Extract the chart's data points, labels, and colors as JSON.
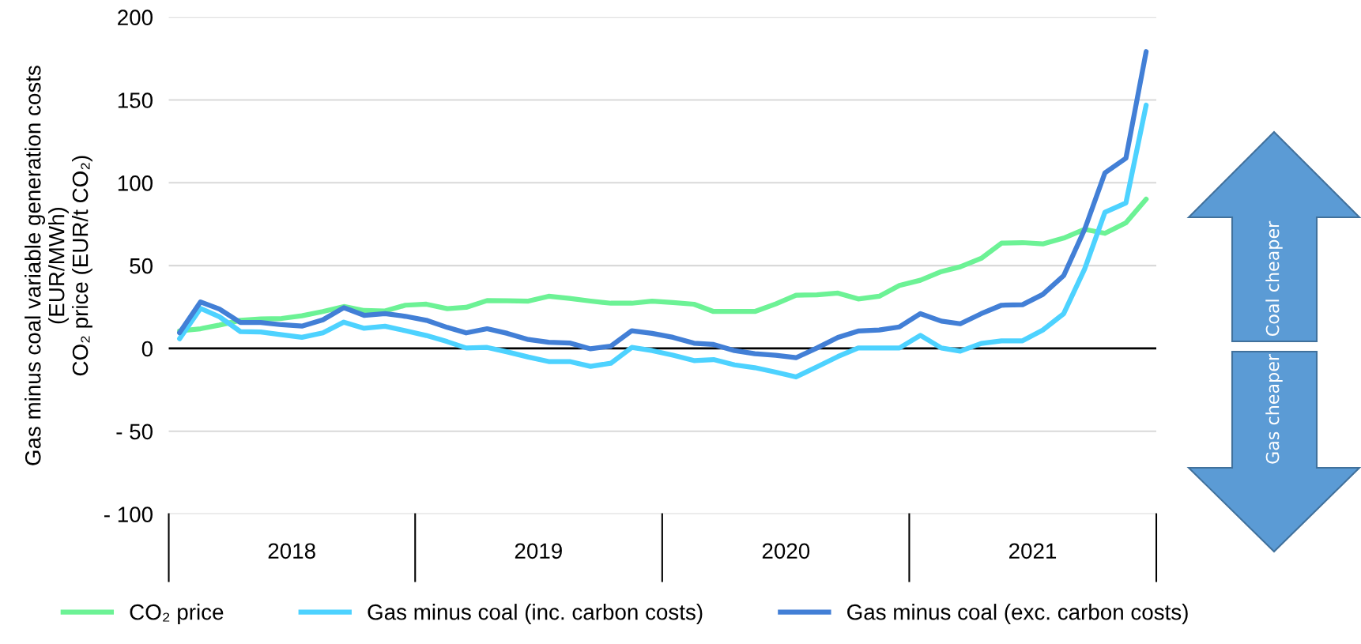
{
  "chart_data": {
    "type": "line",
    "ylabel": "Gas minus coal variable generation costs\n(EUR/MWh)\nCO₂ price (EUR/t CO₂)",
    "x": [
      "2018-01",
      "2018-02",
      "2018-03",
      "2018-04",
      "2018-05",
      "2018-06",
      "2018-07",
      "2018-08",
      "2018-09",
      "2018-10",
      "2018-11",
      "2018-12",
      "2019-01",
      "2019-02",
      "2019-03",
      "2019-04",
      "2019-05",
      "2019-06",
      "2019-07",
      "2019-08",
      "2019-09",
      "2019-10",
      "2019-11",
      "2019-12",
      "2020-01",
      "2020-02",
      "2020-03",
      "2020-04",
      "2020-05",
      "2020-06",
      "2020-07",
      "2020-08",
      "2020-09",
      "2020-10",
      "2020-11",
      "2020-12",
      "2021-01",
      "2021-02",
      "2021-03",
      "2021-04",
      "2021-05",
      "2021-06",
      "2021-07",
      "2021-08",
      "2021-09",
      "2021-10",
      "2021-11",
      "2021-12"
    ],
    "series": [
      {
        "name": "CO₂ price",
        "color": "#6cf295",
        "values": [
          10.6,
          11.9,
          14.1,
          17.0,
          17.8,
          18.1,
          19.7,
          22.3,
          25.3,
          22.9,
          22.6,
          26.1,
          26.7,
          24.0,
          24.8,
          28.9,
          28.8,
          28.6,
          31.5,
          30.2,
          28.6,
          27.3,
          27.3,
          28.5,
          27.7,
          26.7,
          22.3,
          22.3,
          22.3,
          26.9,
          32.1,
          32.4,
          33.4,
          29.9,
          31.5,
          38.0,
          41.2,
          46.4,
          49.3,
          54.4,
          63.6,
          63.9,
          63.1,
          66.6,
          71.9,
          69.5,
          75.8,
          90.1
        ]
      },
      {
        "name": "Gas minus coal (inc. carbon costs)",
        "color": "#4dd2ff",
        "values": [
          5.9,
          24.2,
          19.1,
          10.2,
          9.9,
          8.3,
          6.7,
          9.4,
          15.9,
          12.2,
          13.4,
          10.7,
          7.8,
          4.1,
          0.3,
          0.6,
          -2.1,
          -5.2,
          -7.9,
          -7.9,
          -10.8,
          -8.9,
          0.6,
          -1.3,
          -4.1,
          -7.3,
          -6.7,
          -9.9,
          -11.6,
          -14.3,
          -17.2,
          -11.1,
          -4.9,
          0.3,
          0.3,
          0.3,
          7.9,
          0.3,
          -1.6,
          3.0,
          4.6,
          4.6,
          11.1,
          21.0,
          48.0,
          82.2,
          87.8,
          146.9
        ]
      },
      {
        "name": "Gas minus coal (exc. carbon costs)",
        "color": "#427fd6",
        "values": [
          9.5,
          28.1,
          23.8,
          15.7,
          15.7,
          14.3,
          13.5,
          17.3,
          24.6,
          20.0,
          21.0,
          19.4,
          17.0,
          12.7,
          9.4,
          11.9,
          9.1,
          5.4,
          3.7,
          3.3,
          -0.2,
          1.4,
          10.7,
          9.1,
          6.7,
          3.2,
          2.4,
          -1.3,
          -3.2,
          -4.1,
          -5.6,
          0.3,
          6.7,
          10.5,
          11.1,
          13.0,
          21.0,
          16.5,
          14.9,
          21.0,
          26.1,
          26.4,
          32.6,
          44.0,
          71.9,
          106.0,
          114.8,
          179.2
        ]
      }
    ],
    "xlim": [
      "2017-12-16",
      "2021-12-16"
    ],
    "xticks": [
      {
        "value": "2018-06-16",
        "label": "2018"
      },
      {
        "value": "2019-06-16",
        "label": "2019"
      },
      {
        "value": "2020-06-16",
        "label": "2020"
      },
      {
        "value": "2021-06-16",
        "label": "2021"
      }
    ],
    "ylim": [
      -100,
      200
    ],
    "yticks": [
      {
        "value": -100,
        "label": "- 100"
      },
      {
        "value": -50,
        "label": "- 50"
      },
      0,
      50,
      100,
      150,
      200
    ],
    "ref_lines": [
      {
        "axis": "y",
        "value": 0,
        "color": "#000000"
      }
    ],
    "annotations": [
      "Coal cheaper",
      "Gas cheaper"
    ],
    "grid": "y",
    "legend": "bottom",
    "marker": "none",
    "line_style": "solid"
  }
}
